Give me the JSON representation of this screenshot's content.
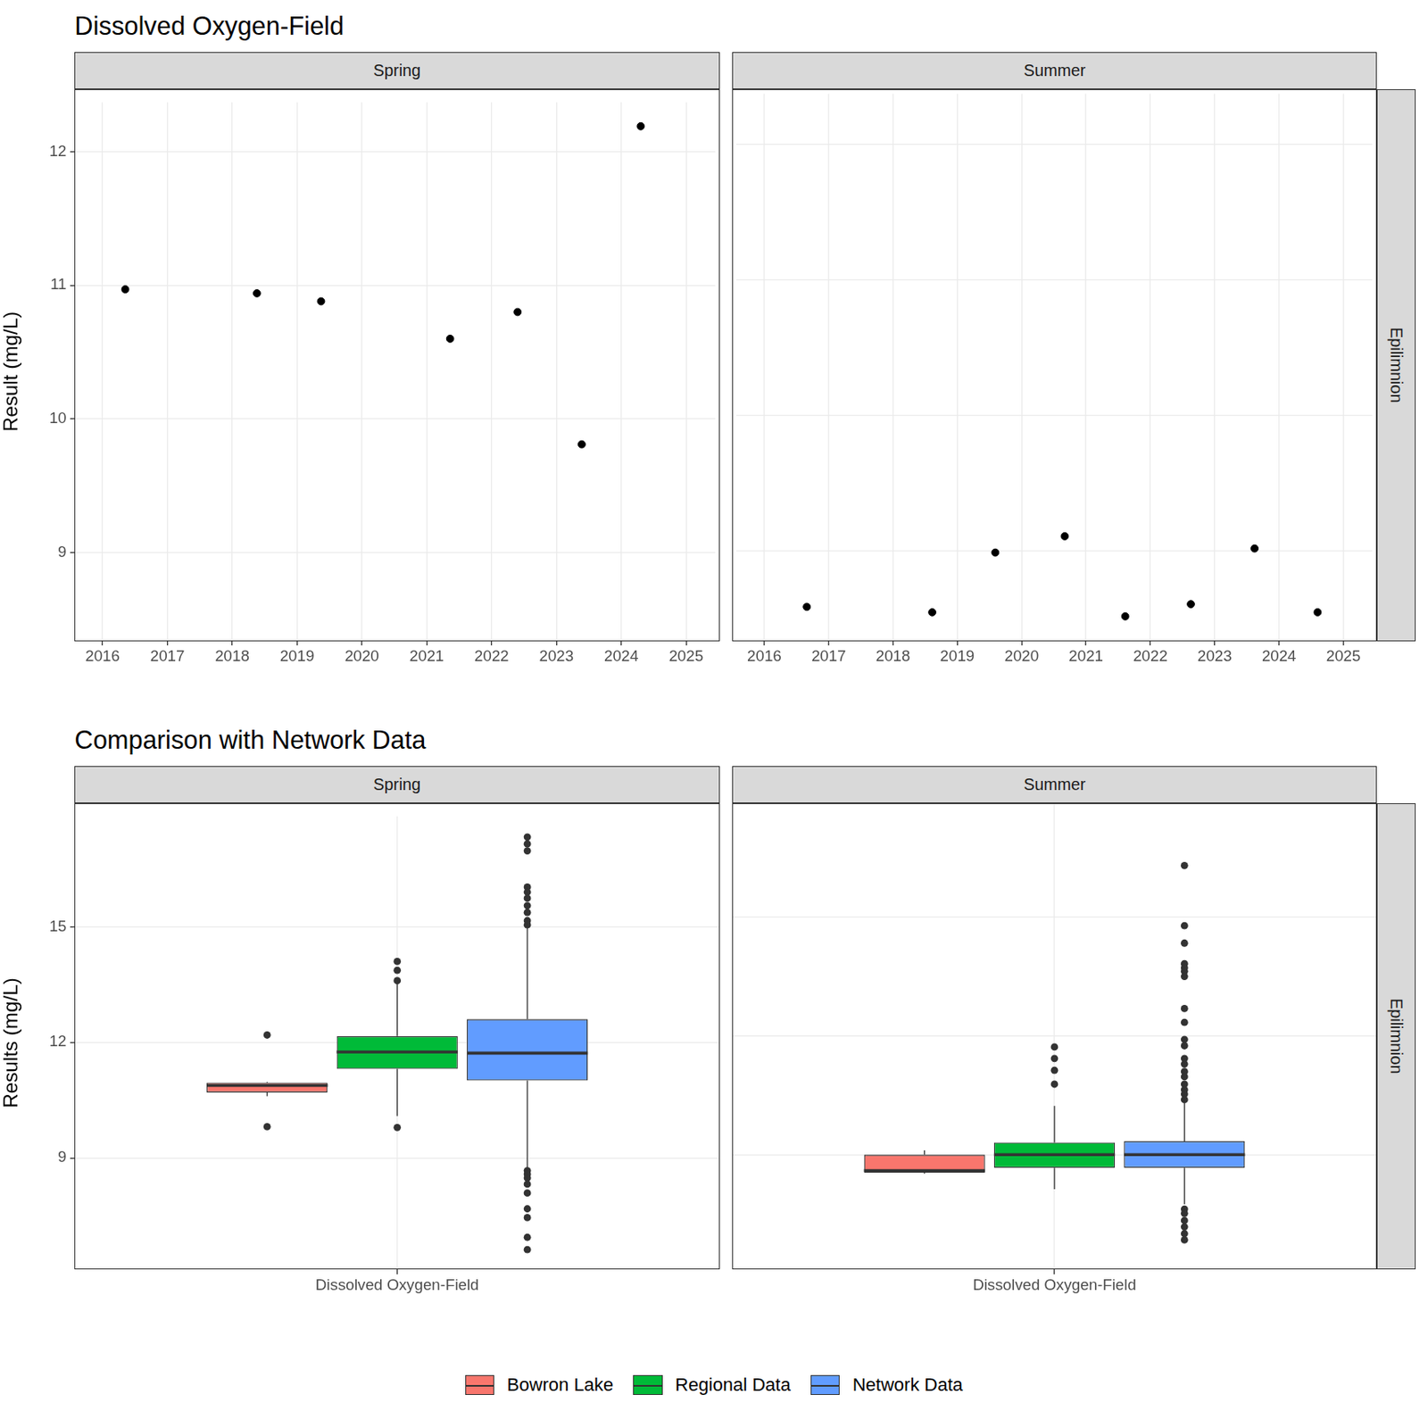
{
  "chart_data": [
    {
      "type": "scatter",
      "title": "Dissolved Oxygen-Field",
      "subtitle": "Spring",
      "ylabel": "Result (mg/L)",
      "x": [
        2016.35,
        2018.38,
        2019.37,
        2021.36,
        2022.4,
        2023.39,
        2024.3
      ],
      "values": [
        10.97,
        10.94,
        10.88,
        10.6,
        10.8,
        9.81,
        12.19
      ],
      "color": "#000000",
      "marker": "circle",
      "xlim": [
        2015.57,
        2025.45
      ],
      "xticks": [
        2016,
        2017,
        2018,
        2019,
        2020,
        2021,
        2022,
        2023,
        2024,
        2025
      ],
      "ylim": [
        8.34,
        12.37
      ],
      "yticks": [
        9,
        10,
        11,
        12
      ],
      "grid": true
    },
    {
      "type": "scatter",
      "subtitle": "Summer",
      "row_label": "Epilimnion",
      "x": [
        2016.66,
        2018.61,
        2019.59,
        2020.67,
        2021.61,
        2022.63,
        2023.62,
        2024.6
      ],
      "values": [
        8.59,
        8.55,
        8.99,
        9.11,
        8.52,
        8.61,
        9.02,
        8.55
      ],
      "color": "#000000",
      "marker": "circle",
      "xlim": [
        2015.57,
        2025.45
      ],
      "xticks": [
        2016,
        2017,
        2018,
        2019,
        2020,
        2021,
        2022,
        2023,
        2024,
        2025
      ],
      "ylim": [
        8.34,
        12.37
      ],
      "yticks": [
        9,
        10,
        11,
        12
      ],
      "grid": true,
      "tick_labels": "x"
    },
    {
      "type": "boxplot",
      "title": "Comparison with Network Data",
      "subtitle": "Spring",
      "ylabel": "Results (mg/L)",
      "categories": [
        "Dissolved Oxygen-Field"
      ],
      "series": [
        {
          "name": "Bowron Lake",
          "color": "#F8766D",
          "min": 10.6,
          "q1": 10.7,
          "median": 10.88,
          "q3": 10.95,
          "max": 10.97,
          "outliers": [
            12.19,
            9.81
          ]
        },
        {
          "name": "Regional Data",
          "color": "#00BA38",
          "min": 10.09,
          "q1": 11.31,
          "median": 11.75,
          "q3": 12.16,
          "max": 13.55,
          "outliers": [
            14.1,
            13.87,
            13.6,
            9.79
          ]
        },
        {
          "name": "Network Data",
          "color": "#619CFF",
          "min": 8.72,
          "q1": 11.01,
          "median": 11.72,
          "q3": 12.6,
          "max": 15.03,
          "outliers": [
            17.33,
            17.15,
            16.97,
            16.03,
            15.9,
            15.74,
            15.55,
            15.37,
            15.16,
            15.05,
            8.67,
            8.58,
            8.48,
            8.32,
            8.09,
            7.68,
            7.45,
            6.94,
            6.62
          ]
        }
      ],
      "ylim": [
        6.1,
        17.87
      ],
      "yticks": [
        9,
        12,
        15
      ],
      "grid": true,
      "legend": "bottom"
    },
    {
      "type": "boxplot",
      "subtitle": "Summer",
      "row_label": "Epilimnion",
      "categories": [
        "Dissolved Oxygen-Field"
      ],
      "series": [
        {
          "name": "Bowron Lake",
          "color": "#F8766D",
          "min": 8.52,
          "q1": 8.55,
          "median": 8.6,
          "q3": 9.0,
          "max": 9.11,
          "outliers": []
        },
        {
          "name": "Regional Data",
          "color": "#00BA38",
          "min": 8.13,
          "q1": 8.67,
          "median": 9.0,
          "q3": 9.31,
          "max": 10.23,
          "outliers": [
            11.72,
            11.43,
            11.13,
            10.78
          ]
        },
        {
          "name": "Network Data",
          "color": "#619CFF",
          "min": 7.75,
          "q1": 8.67,
          "median": 9.0,
          "q3": 9.34,
          "max": 10.3,
          "outliers": [
            16.3,
            14.78,
            14.34,
            13.82,
            13.72,
            13.63,
            13.5,
            12.69,
            12.34,
            11.91,
            11.75,
            11.43,
            11.29,
            11.1,
            10.97,
            10.78,
            10.64,
            10.53,
            10.39,
            7.63,
            7.52,
            7.34,
            7.18,
            7.01,
            6.85
          ]
        }
      ],
      "ylim": [
        6.1,
        17.87
      ],
      "yticks": [
        9,
        12,
        15
      ],
      "grid": true,
      "tick_labels": "x",
      "legend": "bottom"
    }
  ]
}
